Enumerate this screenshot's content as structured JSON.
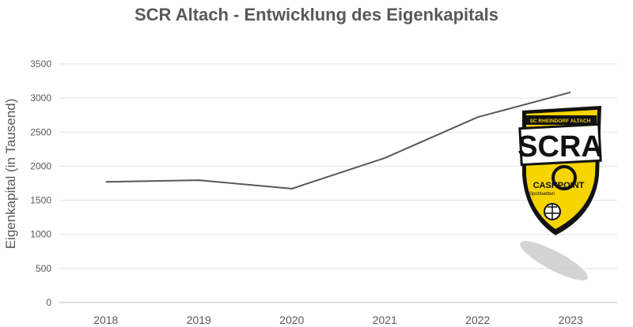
{
  "chart_data": {
    "type": "line",
    "title": "SCR Altach - Entwicklung des Eigenkapitals",
    "xlabel": "",
    "ylabel": "Eigenkapital (in Tausend)",
    "categories": [
      "2018",
      "2019",
      "2020",
      "2021",
      "2022",
      "2023"
    ],
    "series": [
      {
        "values": [
          1770,
          1795,
          1670,
          2120,
          2720,
          3085
        ]
      }
    ],
    "ylim": [
      0,
      3500
    ],
    "yticks": [
      0,
      500,
      1000,
      1500,
      2000,
      2500,
      3000,
      3500
    ],
    "grid": true,
    "line_color": "#595959"
  },
  "logo": {
    "top_text": "SC RHEINDORF ALTACH",
    "main_text": "SCRA",
    "sponsor_text": "CASHPOINT",
    "sponsor_sub": "Sportwetten",
    "colors": {
      "yellow": "#f5d400",
      "black": "#111111"
    }
  }
}
